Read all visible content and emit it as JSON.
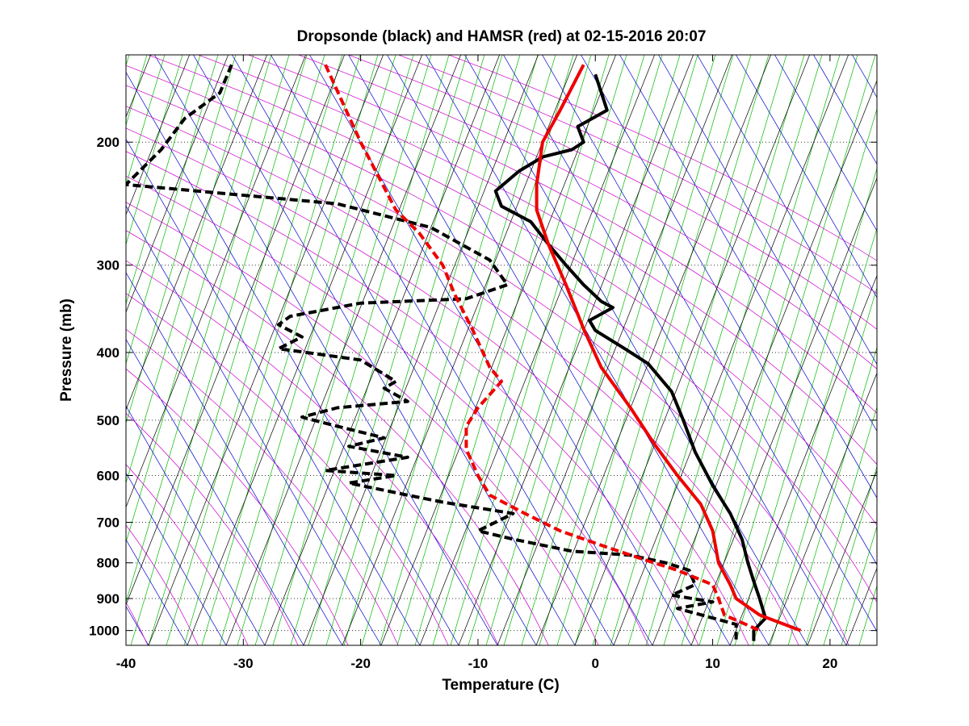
{
  "chart_data": {
    "type": "line",
    "title": "Dropsonde (black) and HAMSR (red) at 02-15-2016 20:07",
    "xlabel": "Temperature (C)",
    "ylabel": "Pressure (mb)",
    "xlim": [
      -40,
      24
    ],
    "ylim": [
      1050,
      150
    ],
    "y_scale": "log",
    "x_ticks": [
      "-40",
      "-30",
      "-20",
      "-10",
      "0",
      "10",
      "20"
    ],
    "y_ticks": [
      "200",
      "300",
      "400",
      "500",
      "600",
      "700",
      "800",
      "900",
      "1000"
    ],
    "grid": "dotted horizontal at pressure ticks",
    "background_lines": {
      "isotherms_skewed": "#000000",
      "dry_adiabats": "#cc00cc",
      "moist_adiabats": "#0000cc",
      "mixing_ratio": "#00bb00"
    },
    "series": [
      {
        "line_style": "solid",
        "color": "#000000",
        "points": [
          [
            0,
            160
          ],
          [
            1,
            180
          ],
          [
            -1.5,
            190
          ],
          [
            -1,
            200
          ],
          [
            -2,
            205
          ],
          [
            -4.5,
            210
          ],
          [
            -6.5,
            220
          ],
          [
            -8.5,
            235
          ],
          [
            -8,
            247
          ],
          [
            -5.5,
            260
          ],
          [
            -4,
            280
          ],
          [
            -2.5,
            300
          ],
          [
            -1,
            320
          ],
          [
            0.5,
            338
          ],
          [
            1.5,
            345
          ],
          [
            -0.5,
            360
          ],
          [
            0,
            372
          ],
          [
            2.5,
            395
          ],
          [
            4.5,
            415
          ],
          [
            6.5,
            455
          ],
          [
            7.5,
            500
          ],
          [
            8.5,
            555
          ],
          [
            10,
            620
          ],
          [
            11.5,
            680
          ],
          [
            12.5,
            740
          ],
          [
            13,
            800
          ],
          [
            13.5,
            850
          ],
          [
            14,
            900
          ],
          [
            14.5,
            960
          ],
          [
            13.5,
            1000
          ],
          [
            13.5,
            1035
          ]
        ]
      },
      {
        "line_style": "dashed",
        "color": "#000000",
        "points": [
          [
            -31,
            155
          ],
          [
            -32,
            170
          ],
          [
            -35,
            185
          ],
          [
            -37,
            205
          ],
          [
            -40,
            230
          ],
          [
            -22,
            245
          ],
          [
            -14,
            265
          ],
          [
            -9,
            295
          ],
          [
            -7.5,
            320
          ],
          [
            -11,
            335
          ],
          [
            -20,
            340
          ],
          [
            -26,
            355
          ],
          [
            -27,
            365
          ],
          [
            -25,
            380
          ],
          [
            -27,
            395
          ],
          [
            -20,
            410
          ],
          [
            -17,
            440
          ],
          [
            -18,
            450
          ],
          [
            -16,
            470
          ],
          [
            -22,
            480
          ],
          [
            -25,
            495
          ],
          [
            -22,
            510
          ],
          [
            -18,
            530
          ],
          [
            -21,
            545
          ],
          [
            -16,
            565
          ],
          [
            -23,
            590
          ],
          [
            -17,
            600
          ],
          [
            -21,
            615
          ],
          [
            -16,
            640
          ],
          [
            -13,
            655
          ],
          [
            -7,
            680
          ],
          [
            -10,
            720
          ],
          [
            -7,
            740
          ],
          [
            -2,
            770
          ],
          [
            3,
            780
          ],
          [
            6,
            800
          ],
          [
            8,
            820
          ],
          [
            8.5,
            860
          ],
          [
            6.5,
            890
          ],
          [
            10,
            910
          ],
          [
            7,
            930
          ],
          [
            12,
            980
          ],
          [
            12,
            1030
          ]
        ]
      },
      {
        "line_style": "dashed",
        "color": "#ee0000",
        "points": [
          [
            -23,
            155
          ],
          [
            -20,
            200
          ],
          [
            -17,
            250
          ],
          [
            -15,
            270
          ],
          [
            -13,
            300
          ],
          [
            -12,
            330
          ],
          [
            -10.5,
            370
          ],
          [
            -9,
            420
          ],
          [
            -8,
            440
          ],
          [
            -10,
            480
          ],
          [
            -11,
            510
          ],
          [
            -11,
            550
          ],
          [
            -10,
            600
          ],
          [
            -9,
            640
          ],
          [
            -6,
            680
          ],
          [
            -3,
            720
          ],
          [
            1,
            760
          ],
          [
            4,
            790
          ],
          [
            7,
            820
          ],
          [
            10,
            860
          ],
          [
            10.5,
            900
          ],
          [
            11,
            950
          ],
          [
            14,
            1000
          ]
        ]
      },
      {
        "line_style": "solid",
        "color": "#ee0000",
        "points": [
          [
            -1,
            155
          ],
          [
            -3,
            180
          ],
          [
            -4.5,
            200
          ],
          [
            -5,
            230
          ],
          [
            -5,
            250
          ],
          [
            -4,
            280
          ],
          [
            -2.5,
            320
          ],
          [
            -1,
            370
          ],
          [
            0.5,
            420
          ],
          [
            3,
            480
          ],
          [
            5,
            540
          ],
          [
            7,
            600
          ],
          [
            9,
            660
          ],
          [
            10,
            720
          ],
          [
            10.5,
            800
          ],
          [
            11.5,
            860
          ],
          [
            12,
            900
          ],
          [
            14,
            950
          ],
          [
            17.5,
            1000
          ]
        ]
      }
    ]
  }
}
